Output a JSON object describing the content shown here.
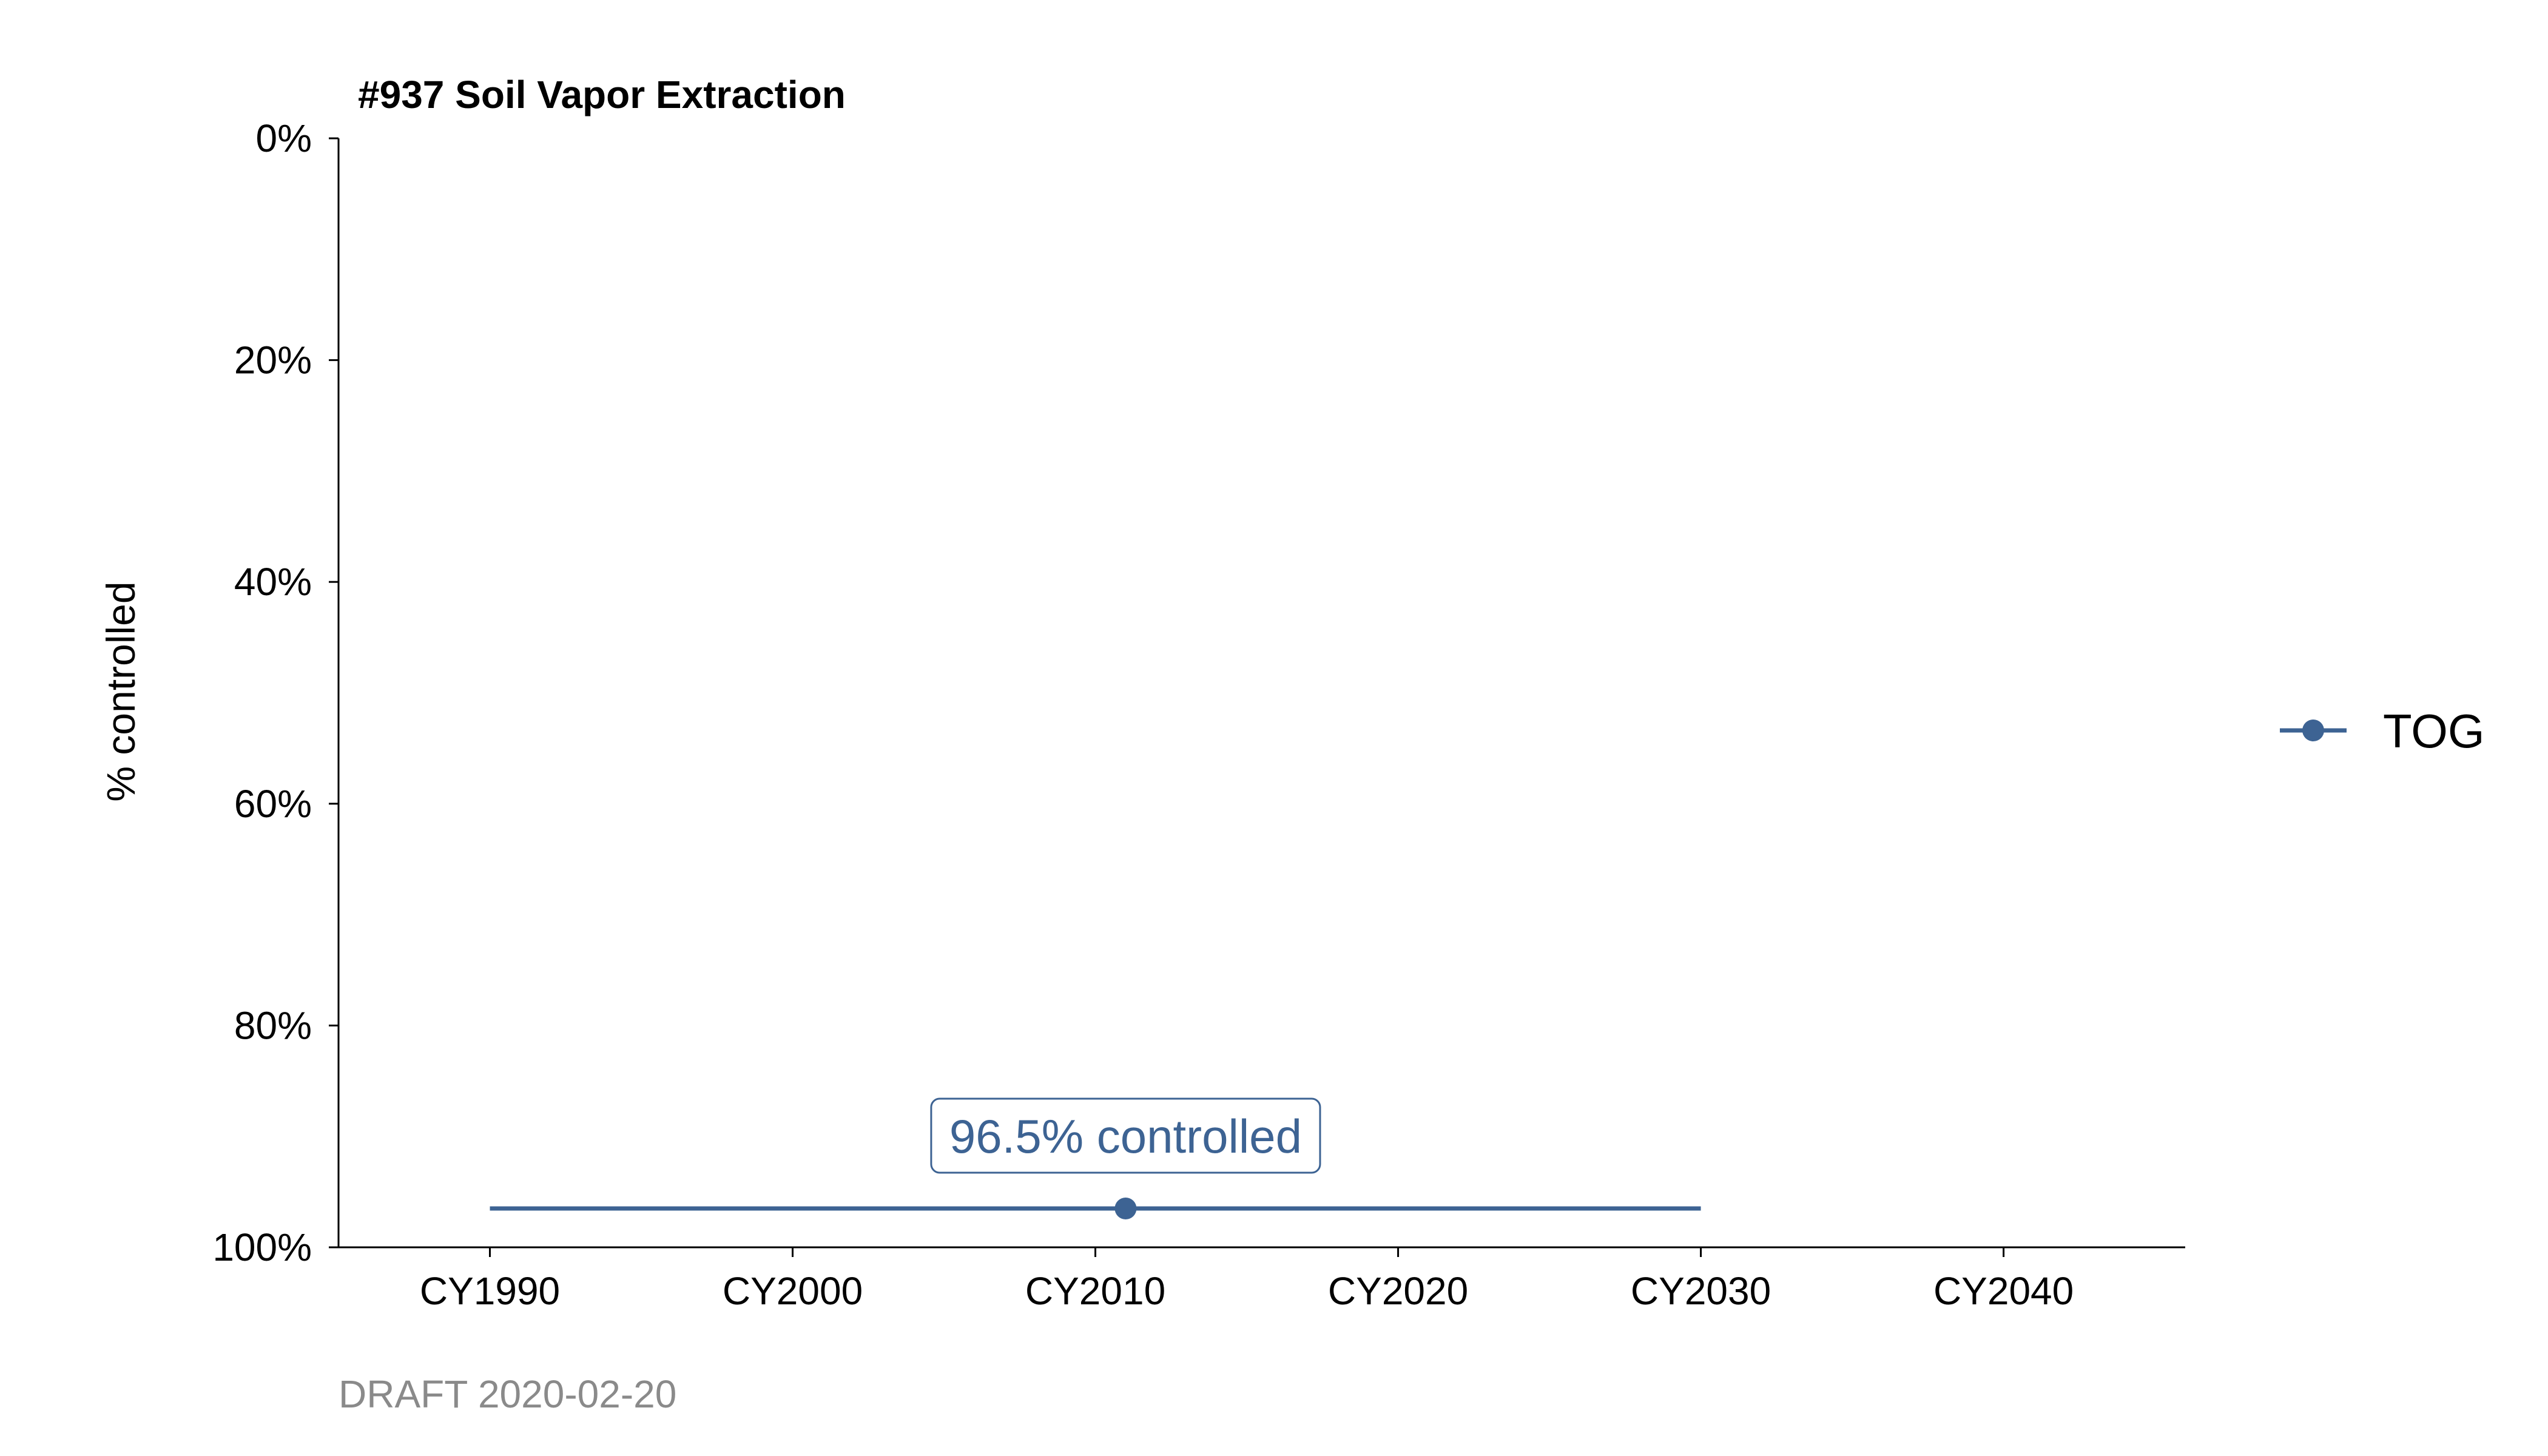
{
  "chart_data": {
    "type": "line",
    "title": "#937 Soil Vapor Extraction",
    "xlabel": "",
    "ylabel": "% controlled",
    "x_ticks": [
      1990,
      2000,
      2010,
      2020,
      2030,
      2040
    ],
    "x_tick_labels": [
      "CY1990",
      "CY2000",
      "CY2010",
      "CY2020",
      "CY2030",
      "CY2040"
    ],
    "xlim": [
      1985,
      2046
    ],
    "y_ticks": [
      0,
      20,
      40,
      60,
      80,
      100
    ],
    "y_tick_labels": [
      "0%",
      "20%",
      "40%",
      "60%",
      "80%",
      "100%"
    ],
    "ylim": [
      0,
      100
    ],
    "y_reversed": true,
    "series": [
      {
        "name": "TOG",
        "color": "#3d6393",
        "x": [
          1990,
          2030
        ],
        "y": [
          96.5,
          96.5
        ],
        "marker": {
          "x": 2011,
          "y": 96.5
        }
      }
    ],
    "annotations": [
      {
        "x": 2011,
        "y": 96.5,
        "text": "96.5% controlled",
        "color": "#3d6393"
      }
    ],
    "legend_position": "right",
    "grid": false,
    "caption": "DRAFT 2020-02-20"
  }
}
